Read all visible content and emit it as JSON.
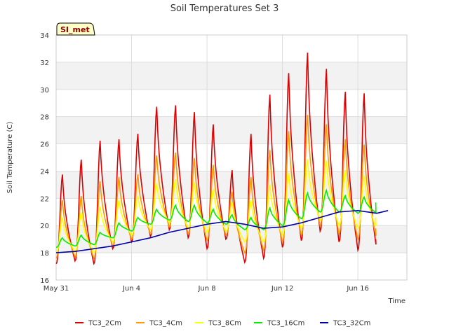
{
  "chart_data": {
    "type": "line",
    "title": "Soil Temperatures Set 3",
    "xlabel": "Time",
    "ylabel": "Soil Temperature (C)",
    "badge": "SI_met",
    "xlim": [
      0,
      18.6
    ],
    "ylim": [
      16,
      34
    ],
    "yticks": [
      16,
      18,
      20,
      22,
      24,
      26,
      28,
      30,
      32,
      34
    ],
    "xticks": [
      {
        "day": 0,
        "label": "May 31"
      },
      {
        "day": 4,
        "label": "Jun 4"
      },
      {
        "day": 8,
        "label": "Jun 8"
      },
      {
        "day": 12,
        "label": "Jun 12"
      },
      {
        "day": 16,
        "label": "Jun 16"
      }
    ],
    "grid": true,
    "legend_position": "bottom",
    "series": [
      {
        "name": "TC3_2Cm",
        "color": "#dd0000",
        "daily_max": [
          23.8,
          24.9,
          26.3,
          26.4,
          26.8,
          28.8,
          28.9,
          28.4,
          27.5,
          24.1,
          26.8,
          29.7,
          31.3,
          32.8,
          31.6,
          29.9,
          29.8
        ],
        "daily_min": [
          17.2,
          17.4,
          17.2,
          18.3,
          18.8,
          19.2,
          19.7,
          19.1,
          18.3,
          19.0,
          17.3,
          17.6,
          18.4,
          18.9,
          19.6,
          18.8,
          18.2
        ]
      },
      {
        "name": "TC3_4Cm",
        "color": "#ff9900",
        "daily_max": [
          21.9,
          22.2,
          23.3,
          23.6,
          23.8,
          25.2,
          25.4,
          25.0,
          24.5,
          22.5,
          23.6,
          25.6,
          27.0,
          28.2,
          27.5,
          26.4,
          26.0
        ],
        "daily_min": [
          17.6,
          17.7,
          17.6,
          18.5,
          19.0,
          19.4,
          19.9,
          19.4,
          18.9,
          19.3,
          18.0,
          18.2,
          18.8,
          19.3,
          20.0,
          19.4,
          19.0
        ]
      },
      {
        "name": "TC3_8Cm",
        "color": "#ffff00",
        "daily_max": [
          20.6,
          21.0,
          21.4,
          21.9,
          22.2,
          23.1,
          23.4,
          23.2,
          22.7,
          21.7,
          21.9,
          23.0,
          23.9,
          24.9,
          24.8,
          24.1,
          23.7
        ],
        "daily_min": [
          18.0,
          18.1,
          18.0,
          18.8,
          19.3,
          19.7,
          20.2,
          19.8,
          19.5,
          19.6,
          18.8,
          18.8,
          19.3,
          19.8,
          20.4,
          20.0,
          19.8
        ]
      },
      {
        "name": "TC3_16Cm",
        "color": "#00ee00",
        "daily_max": [
          19.1,
          19.3,
          19.5,
          20.2,
          20.6,
          21.2,
          21.5,
          21.5,
          21.2,
          20.8,
          20.6,
          21.3,
          21.9,
          22.4,
          22.6,
          22.2,
          22.1
        ],
        "daily_min": [
          18.4,
          18.5,
          18.6,
          19.1,
          19.6,
          20.1,
          20.4,
          20.3,
          20.2,
          20.1,
          19.7,
          19.7,
          20.0,
          20.5,
          21.0,
          21.0,
          20.9
        ]
      },
      {
        "name": "TC3_32Cm",
        "color": "#0000aa",
        "points": [
          [
            0,
            18.0
          ],
          [
            1,
            18.1
          ],
          [
            2,
            18.3
          ],
          [
            3,
            18.5
          ],
          [
            4,
            18.8
          ],
          [
            5,
            19.1
          ],
          [
            6,
            19.5
          ],
          [
            7,
            19.8
          ],
          [
            8,
            20.1
          ],
          [
            9,
            20.3
          ],
          [
            10,
            20.1
          ],
          [
            11,
            19.8
          ],
          [
            12,
            19.9
          ],
          [
            13,
            20.2
          ],
          [
            14,
            20.6
          ],
          [
            15,
            21.0
          ],
          [
            16,
            21.1
          ],
          [
            17,
            20.9
          ],
          [
            17.6,
            21.1
          ]
        ]
      }
    ]
  }
}
